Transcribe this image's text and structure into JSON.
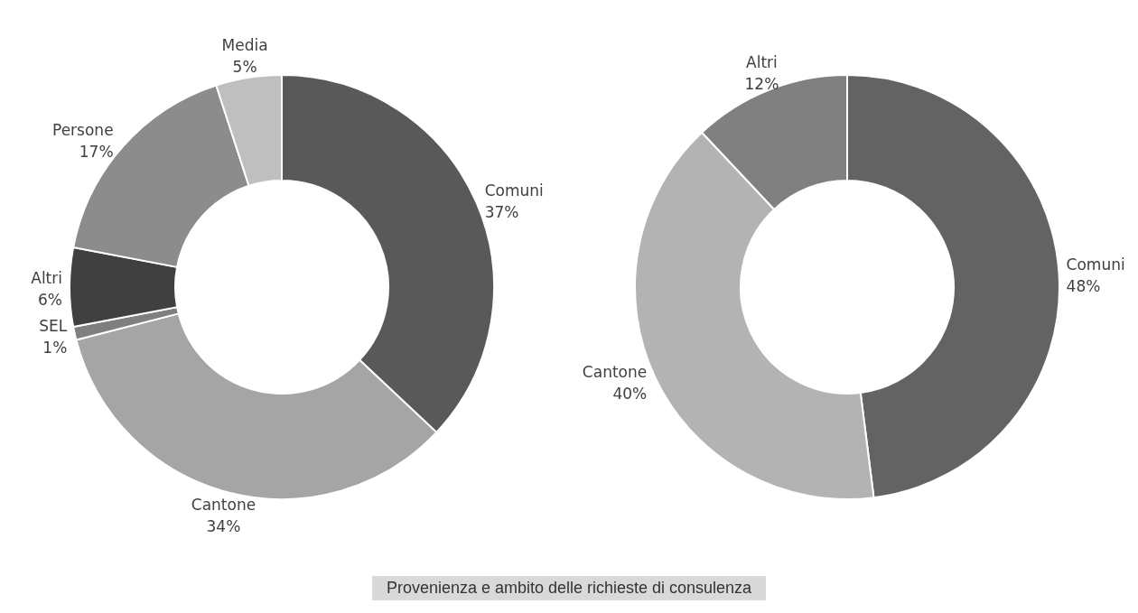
{
  "chart_data": [
    {
      "type": "donut",
      "categories": [
        "Comuni",
        "Cantone",
        "SEL",
        "Altri",
        "Persone",
        "Media"
      ],
      "values": [
        37,
        34,
        1,
        6,
        17,
        5
      ],
      "value_labels": [
        "37%",
        "34%",
        "1%",
        "6%",
        "17%",
        "5%"
      ],
      "colors": [
        "#595959",
        "#a5a5a5",
        "#7f7f7f",
        "#404040",
        "#8c8c8c",
        "#bfbfbf"
      ],
      "legend": false,
      "annotations": [
        "Provenienza e ambito delle richieste di consulenza"
      ]
    },
    {
      "type": "donut",
      "categories": [
        "Comuni",
        "Cantone",
        "Altri"
      ],
      "values": [
        48,
        40,
        12
      ],
      "value_labels": [
        "48%",
        "40%",
        "12%"
      ],
      "colors": [
        "#636363",
        "#b3b3b3",
        "#808080"
      ],
      "legend": false
    }
  ]
}
